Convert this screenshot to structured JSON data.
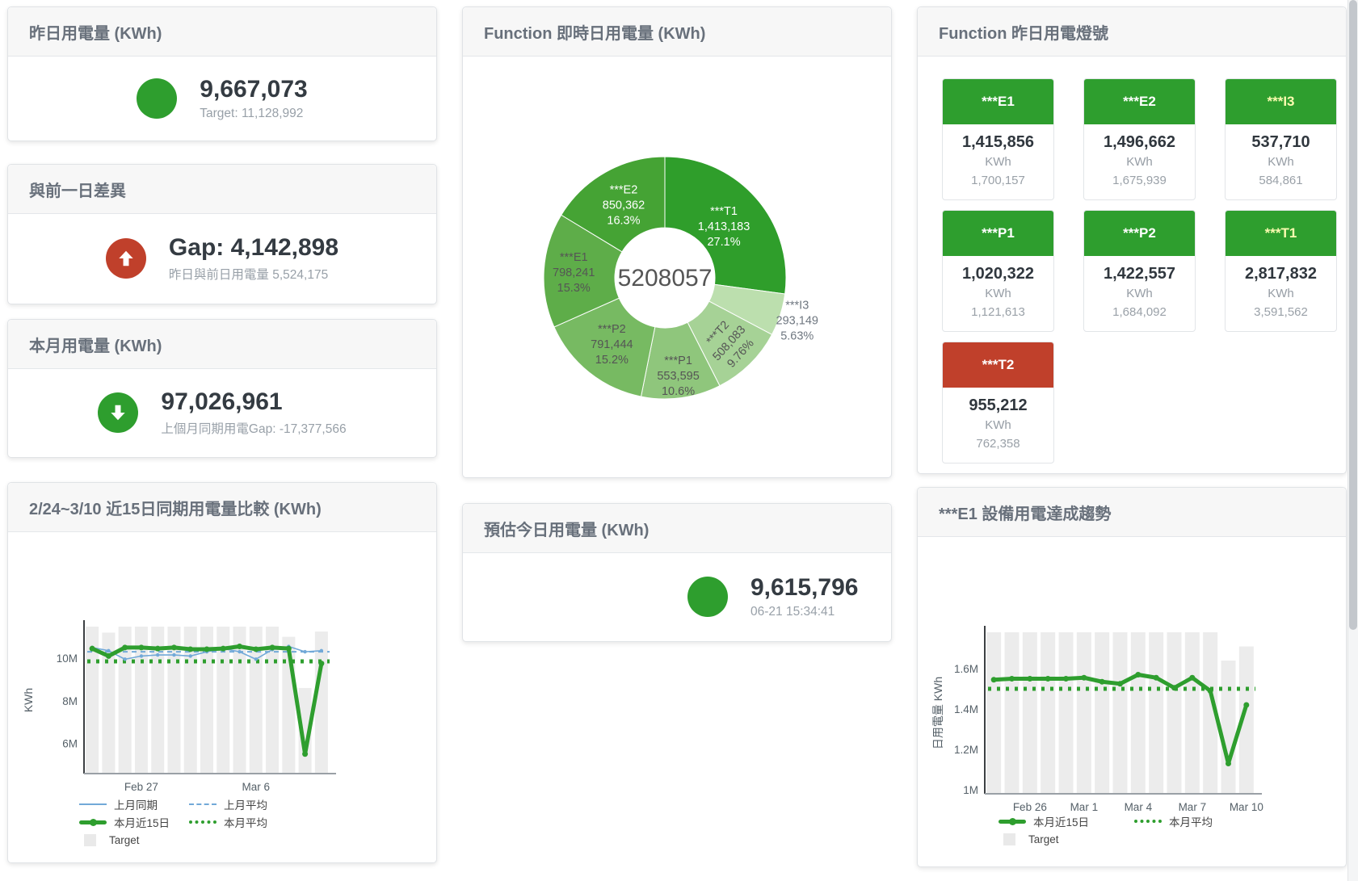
{
  "theme": {
    "green": "#2e9e2e",
    "red": "#c0402b",
    "blue": "#72a9d8",
    "bar_gray": "#ececec",
    "header_text": "#68707b",
    "value_text": "#343b42",
    "sub_text": "#98a0a8"
  },
  "cards": {
    "yesterday": {
      "title": "昨日用電量 (KWh)",
      "value": "9,667,073",
      "subtext": "Target: 11,128,992"
    },
    "prev_day_gap": {
      "title": "與前一日差異",
      "value": "Gap: 4,142,898",
      "subtext": "昨日與前日用電量 5,524,175"
    },
    "month": {
      "title": "本月用電量 (KWh)",
      "value": "97,026,961",
      "subtext": "上個月同期用電Gap: -17,377,566"
    },
    "estimate_today": {
      "title": "預估今日用電量 (KWh)",
      "value": "9,615,796",
      "subtext": "06-21 15:34:41"
    }
  },
  "donut_card": {
    "title": "Function 即時日用電量 (KWh)",
    "chart_data": {
      "type": "pie",
      "center_label": "5208057",
      "slices": [
        {
          "name": "***T1",
          "value": 1413183,
          "pct": "27.1%",
          "color": "#2f9e2b"
        },
        {
          "name": "***I3",
          "value": 293149,
          "pct": "5.63%",
          "color": "#bcdfae"
        },
        {
          "name": "***T2",
          "value": 508083,
          "pct": "9.76%",
          "color": "#a6d296"
        },
        {
          "name": "***P1",
          "value": 553595,
          "pct": "10.6%",
          "color": "#8fc67c"
        },
        {
          "name": "***P2",
          "value": 791444,
          "pct": "15.2%",
          "color": "#77ba62"
        },
        {
          "name": "***E1",
          "value": 798241,
          "pct": "15.3%",
          "color": "#5ead49"
        },
        {
          "name": "***E2",
          "value": 850362,
          "pct": "16.3%",
          "color": "#45a334"
        }
      ]
    }
  },
  "signal_card": {
    "title": "Function 昨日用電燈號",
    "tiles": [
      {
        "label": "***E1",
        "value": "1,415,856",
        "unit": "KWh",
        "target": "1,700,157",
        "status": "green",
        "label_color": "#ffffff"
      },
      {
        "label": "***E2",
        "value": "1,496,662",
        "unit": "KWh",
        "target": "1,675,939",
        "status": "green",
        "label_color": "#ffffff"
      },
      {
        "label": "***I3",
        "value": "537,710",
        "unit": "KWh",
        "target": "584,861",
        "status": "green",
        "label_color": "#fbfbb0"
      },
      {
        "label": "***P1",
        "value": "1,020,322",
        "unit": "KWh",
        "target": "1,121,613",
        "status": "green",
        "label_color": "#ffffff"
      },
      {
        "label": "***P2",
        "value": "1,422,557",
        "unit": "KWh",
        "target": "1,684,092",
        "status": "green",
        "label_color": "#ffffff"
      },
      {
        "label": "***T1",
        "value": "2,817,832",
        "unit": "KWh",
        "target": "3,591,562",
        "status": "green",
        "label_color": "#fbfbb0"
      },
      {
        "label": "***T2",
        "value": "955,212",
        "unit": "KWh",
        "target": "762,358",
        "status": "red",
        "label_color": "#ffffff"
      }
    ]
  },
  "compare_chart_card": {
    "title": "2/24~3/10 近15日同期用電量比較 (KWh)",
    "chart_data": {
      "type": "line",
      "ylabel": "KWh",
      "ylim": [
        4580000,
        11480000
      ],
      "yticks": [
        {
          "value": 6000000,
          "label": "6M"
        },
        {
          "value": 8000000,
          "label": "8M"
        },
        {
          "value": 10000000,
          "label": "10M"
        }
      ],
      "xticks": [
        {
          "index": 3,
          "label": "Feb 27"
        },
        {
          "index": 10,
          "label": "Mar 6"
        }
      ],
      "series": [
        {
          "name": "Target",
          "type": "bar",
          "color": "#ececec",
          "values": [
            11480000,
            11200000,
            11480000,
            11480000,
            11480000,
            11480000,
            11480000,
            11480000,
            11480000,
            11480000,
            11480000,
            11480000,
            11000000,
            8600000,
            11250000
          ]
        },
        {
          "name": "上月平均",
          "type": "hline",
          "style": "dashed",
          "color": "#72a9d8",
          "value": 10300000
        },
        {
          "name": "本月平均",
          "type": "hline",
          "style": "dotted",
          "color": "#2e9e2e",
          "value": 9850000
        },
        {
          "name": "上月同期",
          "type": "line",
          "color": "#72a9d8",
          "width": 1.6,
          "values": [
            10500000,
            10350000,
            9950000,
            10100000,
            10150000,
            10150000,
            10100000,
            10300000,
            10450000,
            10300000,
            9950000,
            10400000,
            10550000,
            10300000,
            10350000
          ]
        },
        {
          "name": "本月近15日",
          "type": "line",
          "color": "#2e9e2e",
          "width": 5,
          "values": [
            10450000,
            10100000,
            10500000,
            10500000,
            10450000,
            10500000,
            10420000,
            10420000,
            10450000,
            10550000,
            10420000,
            10500000,
            10450000,
            5500000,
            9750000
          ]
        }
      ],
      "legend": [
        [
          {
            "label": "上月同期",
            "swatch": "line-blue"
          },
          {
            "label": "上月平均",
            "swatch": "dash-blue"
          }
        ],
        [
          {
            "label": "本月近15日",
            "swatch": "line-green"
          },
          {
            "label": "本月平均",
            "swatch": "dot-green"
          }
        ],
        [
          {
            "label": "Target",
            "swatch": "box-gray"
          }
        ]
      ]
    }
  },
  "trend_chart_card": {
    "title": "***E1 設備用電達成趨勢",
    "chart_data": {
      "type": "line",
      "ylabel": "日用電量 KWh",
      "ylim": [
        980000,
        1780000
      ],
      "yticks": [
        {
          "value": 1000000,
          "label": "1M"
        },
        {
          "value": 1200000,
          "label": "1.2M"
        },
        {
          "value": 1400000,
          "label": "1.4M"
        },
        {
          "value": 1600000,
          "label": "1.6M"
        }
      ],
      "xticks": [
        {
          "index": 2,
          "label": "Feb 26"
        },
        {
          "index": 5,
          "label": "Mar 1"
        },
        {
          "index": 8,
          "label": "Mar 4"
        },
        {
          "index": 11,
          "label": "Mar 7"
        },
        {
          "index": 14,
          "label": "Mar 10"
        }
      ],
      "series": [
        {
          "name": "Target",
          "type": "bar",
          "color": "#ececec",
          "values": [
            1780000,
            1780000,
            1780000,
            1780000,
            1780000,
            1780000,
            1780000,
            1780000,
            1780000,
            1780000,
            1780000,
            1780000,
            1780000,
            1640000,
            1710000
          ]
        },
        {
          "name": "本月平均",
          "type": "hline",
          "style": "dotted",
          "color": "#2e9e2e",
          "value": 1500000
        },
        {
          "name": "本月近15日",
          "type": "line",
          "color": "#2e9e2e",
          "width": 5,
          "values": [
            1545000,
            1550000,
            1550000,
            1550000,
            1550000,
            1555000,
            1535000,
            1525000,
            1570000,
            1555000,
            1505000,
            1555000,
            1490000,
            1130000,
            1420000
          ]
        }
      ],
      "legend": [
        [
          {
            "label": "本月近15日",
            "swatch": "line-green"
          },
          {
            "label": "本月平均",
            "swatch": "dot-green"
          }
        ],
        [
          {
            "label": "Target",
            "swatch": "box-gray"
          }
        ]
      ]
    }
  }
}
